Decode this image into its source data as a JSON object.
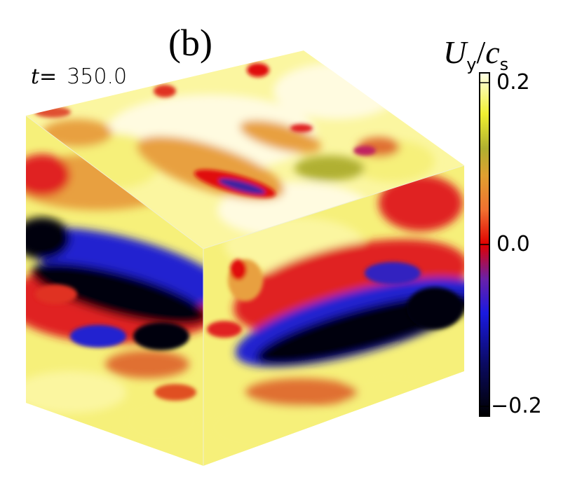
{
  "figure": {
    "panel_label": "(b)",
    "time_label": "t=",
    "time_value": "350.0"
  },
  "colorbar": {
    "title_main": "U",
    "title_sub1": "y",
    "title_slash": "/",
    "title_c": "c",
    "title_sub2": "s",
    "ticks": [
      "0.2",
      "0.0",
      "−0.2"
    ],
    "range": [
      -0.2,
      0.2
    ],
    "colormap": [
      {
        "v": -0.2,
        "color": "#000000"
      },
      {
        "v": -0.14,
        "color": "#0a0a60"
      },
      {
        "v": -0.08,
        "color": "#1a1ae0"
      },
      {
        "v": -0.04,
        "color": "#6a20a8"
      },
      {
        "v": 0.0,
        "color": "#e00000"
      },
      {
        "v": 0.04,
        "color": "#f07030"
      },
      {
        "v": 0.08,
        "color": "#e0a030"
      },
      {
        "v": 0.11,
        "color": "#b0b030"
      },
      {
        "v": 0.15,
        "color": "#f0f030"
      },
      {
        "v": 0.2,
        "color": "#ffffe8"
      }
    ]
  }
}
